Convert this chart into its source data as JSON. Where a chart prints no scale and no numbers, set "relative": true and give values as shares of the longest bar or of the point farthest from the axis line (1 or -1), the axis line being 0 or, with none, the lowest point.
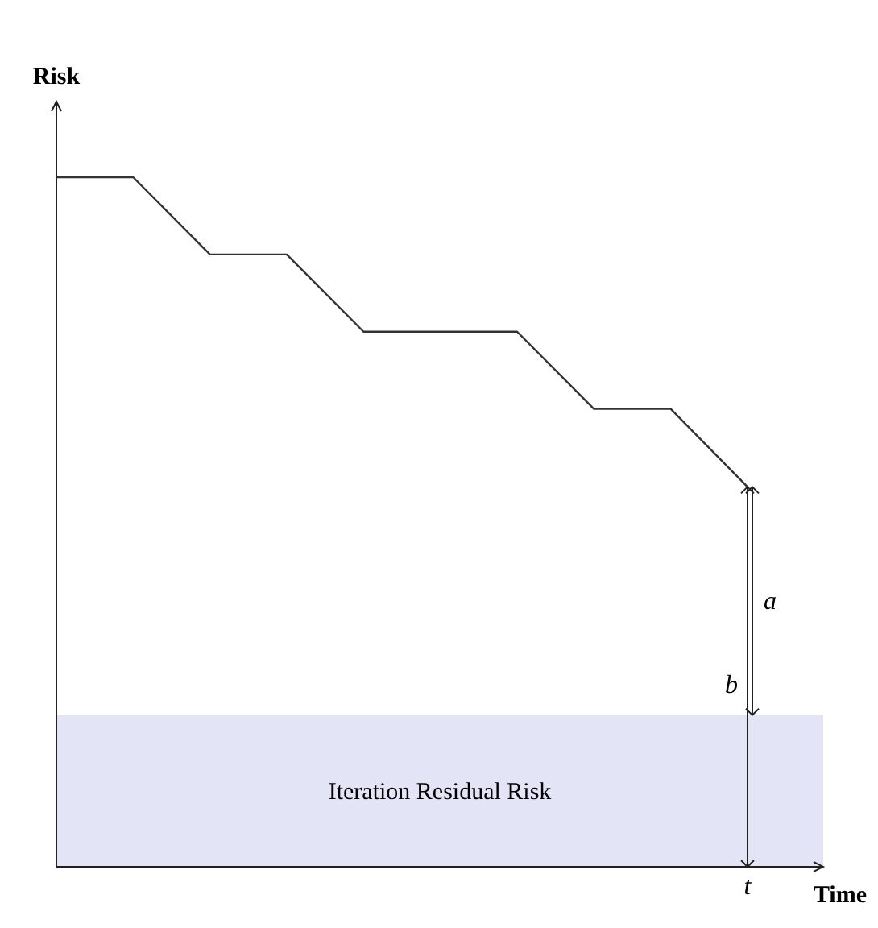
{
  "chart_data": {
    "type": "line",
    "relative": true,
    "xlabel": "Time",
    "ylabel": "Risk",
    "categories": [
      null,
      null,
      null,
      null,
      null,
      null,
      null,
      null,
      null,
      null
    ],
    "values": [
      1,
      1,
      0.888,
      0.888,
      0.776,
      0.776,
      0.776,
      0.664,
      0.664,
      0.551
    ],
    "color": "#333333",
    "bands": [
      {
        "axis": "y",
        "from": 0,
        "to": 0.22,
        "label": "Iteration Residual Risk",
        "color": "#e4e4f7"
      }
    ],
    "annotations": [
      "a",
      "b",
      "t"
    ]
  }
}
